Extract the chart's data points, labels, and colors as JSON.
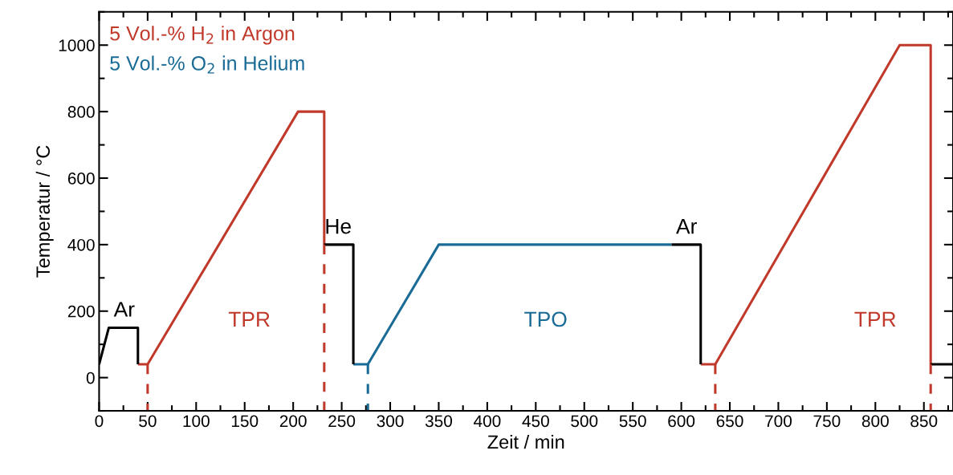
{
  "chart_data": {
    "type": "line",
    "xlabel": "Zeit / min",
    "ylabel": "Temperatur / °C",
    "xlim": [
      0,
      880
    ],
    "xticks": [
      0,
      50,
      100,
      150,
      200,
      250,
      300,
      350,
      400,
      450,
      500,
      550,
      600,
      650,
      700,
      750,
      800,
      850
    ],
    "ylim": [
      -100,
      1100
    ],
    "yticks": [
      0,
      200,
      400,
      600,
      800,
      1000
    ],
    "grid": false,
    "legend": "top left",
    "marker": "none",
    "series": [
      {
        "name": "5 Vol.-% H$_{2}$ in Argon",
        "color": "#c0392b",
        "line_style": "solid",
        "x": [
          40,
          50,
          205,
          232,
          232,
          null,
          620,
          635,
          825,
          857,
          857
        ],
        "values": [
          40,
          40,
          800,
          800,
          400,
          null,
          40,
          40,
          1000,
          1000,
          40
        ]
      },
      {
        "name": "5 Vol.-% O$_{2}$ in Helium",
        "color": "#1a6b96",
        "line_style": "solid",
        "x": [
          262,
          277,
          350,
          590
        ],
        "values": [
          40,
          40,
          400,
          400
        ]
      },
      {
        "color": "#000000",
        "line_style": "solid",
        "x": [
          0,
          10,
          40,
          40,
          null,
          232,
          262,
          262,
          null,
          590,
          620,
          620,
          null,
          857,
          880
        ],
        "values": [
          40,
          150,
          150,
          40,
          null,
          400,
          400,
          40,
          null,
          400,
          400,
          40,
          null,
          40,
          40
        ]
      },
      {
        "color": "#c0392b",
        "line_style": "dashed",
        "x": [
          50,
          50
        ],
        "values": [
          40,
          -100
        ]
      },
      {
        "color": "#c0392b",
        "line_style": "dashed",
        "x": [
          232,
          232
        ],
        "values": [
          400,
          -100
        ]
      },
      {
        "color": "#1a6b96",
        "line_style": "dashed",
        "x": [
          277,
          277
        ],
        "values": [
          40,
          -100
        ]
      },
      {
        "color": "#c0392b",
        "line_style": "dashed",
        "x": [
          635,
          635
        ],
        "values": [
          40,
          -100
        ]
      },
      {
        "color": "#c0392b",
        "line_style": "dashed",
        "x": [
          857,
          857
        ],
        "values": [
          40,
          -100
        ]
      }
    ],
    "annotations": [
      "Ar",
      "TPR",
      "He",
      "TPO",
      "Ar",
      "TPR"
    ]
  }
}
